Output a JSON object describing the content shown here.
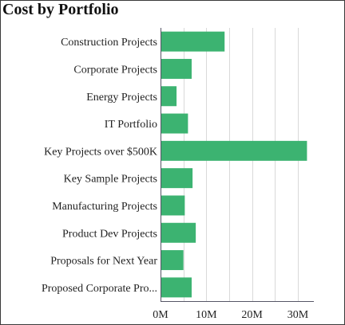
{
  "panel": {
    "title": "Cost by Portfolio"
  },
  "chart_data": {
    "type": "bar",
    "orientation": "horizontal",
    "title": "Cost by Portfolio",
    "xlabel": "",
    "ylabel": "",
    "categories": [
      "Construction Projects",
      "Corporate Projects",
      "Energy Projects",
      "IT Portfolio",
      "Key Projects over $500K",
      "Key Sample Projects",
      "Manufacturing Projects",
      "Product Dev Projects",
      "Proposals for Next Year",
      "Proposed Corporate Pro..."
    ],
    "values": [
      14000000,
      6800000,
      3500000,
      6000000,
      32000000,
      7000000,
      5300000,
      7700000,
      5000000,
      6800000
    ],
    "xlim": [
      0,
      33500000
    ],
    "ticks": [
      {
        "value": 0,
        "label": "0M"
      },
      {
        "value": 10000000,
        "label": "10M"
      },
      {
        "value": 20000000,
        "label": "20M"
      },
      {
        "value": 30000000,
        "label": "30M"
      }
    ],
    "grid": true,
    "legend": "none",
    "bar_color": "#3cb371",
    "grid_color": "#d9d9d9",
    "axis_color": "#555566"
  }
}
